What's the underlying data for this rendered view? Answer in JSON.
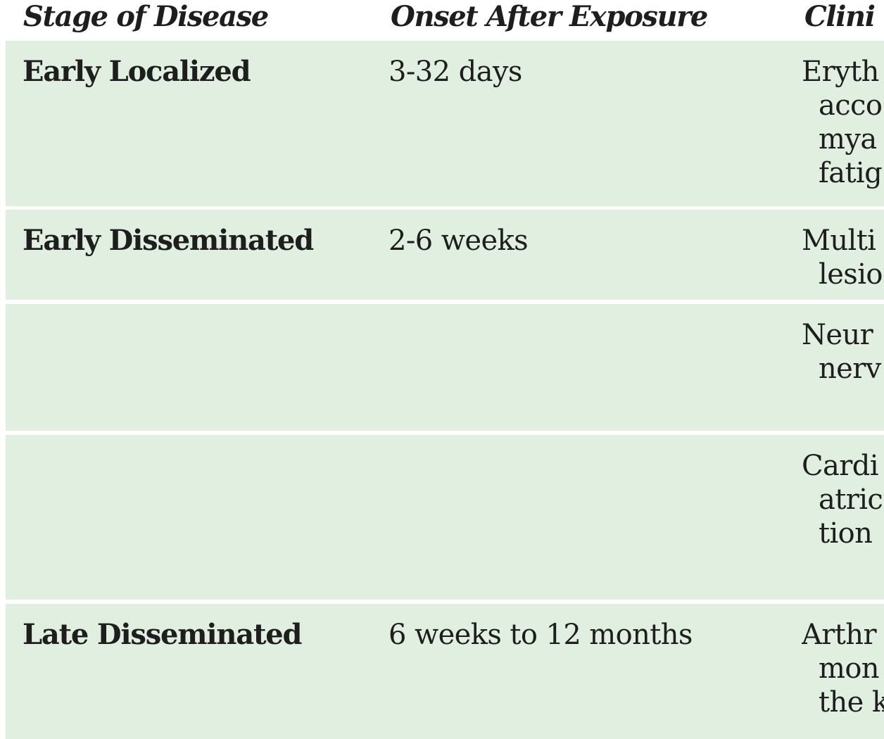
{
  "headers": {
    "stage": "Stage of Disease",
    "onset": "Onset After Exposure",
    "clinical": "Clini"
  },
  "rows": [
    {
      "stage": "Early Localized",
      "onset": "3-32 days",
      "clinical": [
        "Eryth",
        "acco",
        "mya",
        "fatig"
      ]
    },
    {
      "stage": "Early Disseminated",
      "onset": "2-6 weeks",
      "clinical": [
        "Multi",
        "lesio"
      ]
    },
    {
      "stage": "",
      "onset": "",
      "clinical": [
        "Neur",
        "nerv"
      ]
    },
    {
      "stage": "",
      "onset": "",
      "clinical": [
        "Cardi",
        "atric",
        "tion"
      ]
    },
    {
      "stage": "Late Disseminated",
      "onset": "6 weeks to 12 months",
      "clinical": [
        "Arthr",
        "mon",
        "the k"
      ]
    }
  ],
  "colors": {
    "row_background": "#e1efe0",
    "text": "#1e1e1e",
    "background": "#ffffff"
  }
}
